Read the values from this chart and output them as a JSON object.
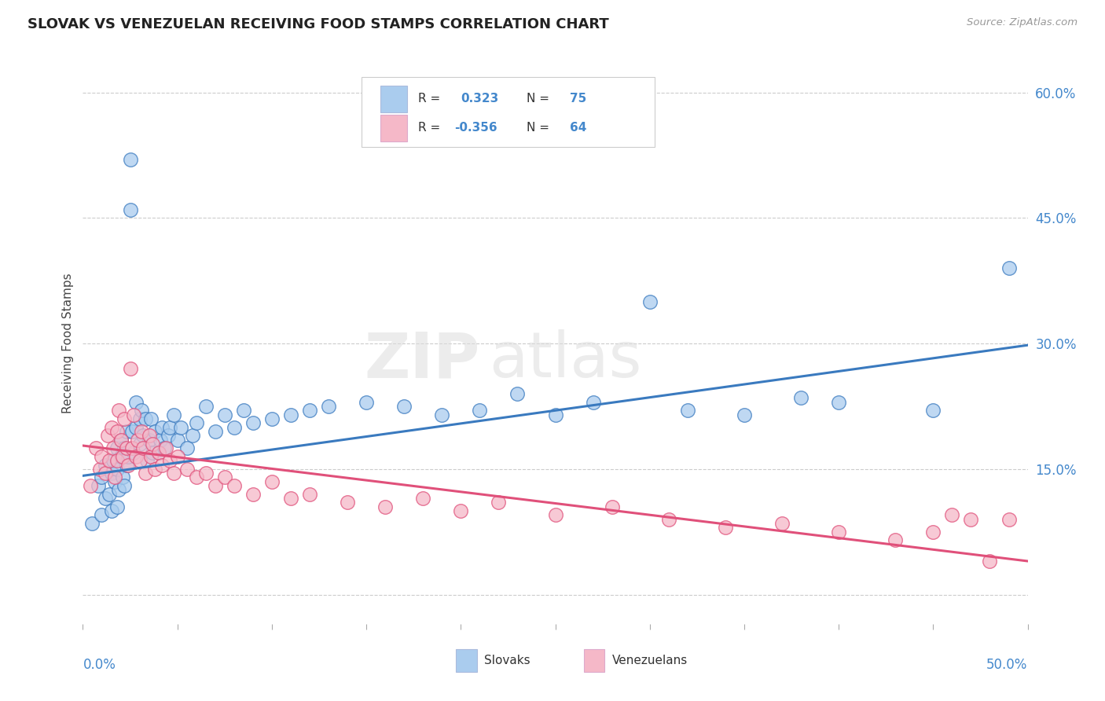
{
  "title": "SLOVAK VS VENEZUELAN RECEIVING FOOD STAMPS CORRELATION CHART",
  "source": "Source: ZipAtlas.com",
  "ylabel": "Receiving Food Stamps",
  "r_slovak": 0.323,
  "n_slovak": 75,
  "r_venezuelan": -0.356,
  "n_venezuelan": 64,
  "blue_color": "#aaccee",
  "pink_color": "#f5b8c8",
  "blue_line_color": "#3a7abf",
  "pink_line_color": "#e0507a",
  "right_yticks": [
    0.0,
    0.15,
    0.3,
    0.45,
    0.6
  ],
  "right_yticklabels": [
    "",
    "15.0%",
    "30.0%",
    "45.0%",
    "60.0%"
  ],
  "xmin": 0.0,
  "xmax": 0.5,
  "ymin": -0.035,
  "ymax": 0.635,
  "watermark_zip": "ZIP",
  "watermark_atlas": "atlas",
  "blue_scatter_x": [
    0.005,
    0.008,
    0.01,
    0.01,
    0.012,
    0.012,
    0.014,
    0.015,
    0.015,
    0.016,
    0.017,
    0.018,
    0.018,
    0.018,
    0.019,
    0.02,
    0.02,
    0.021,
    0.022,
    0.022,
    0.023,
    0.023,
    0.024,
    0.025,
    0.025,
    0.026,
    0.027,
    0.028,
    0.028,
    0.03,
    0.03,
    0.031,
    0.032,
    0.033,
    0.034,
    0.035,
    0.036,
    0.037,
    0.038,
    0.04,
    0.041,
    0.042,
    0.043,
    0.045,
    0.046,
    0.048,
    0.05,
    0.052,
    0.055,
    0.058,
    0.06,
    0.065,
    0.07,
    0.075,
    0.08,
    0.085,
    0.09,
    0.1,
    0.11,
    0.12,
    0.13,
    0.15,
    0.17,
    0.19,
    0.21,
    0.23,
    0.25,
    0.27,
    0.3,
    0.32,
    0.35,
    0.38,
    0.4,
    0.45,
    0.49
  ],
  "blue_scatter_y": [
    0.085,
    0.13,
    0.095,
    0.14,
    0.115,
    0.155,
    0.12,
    0.1,
    0.145,
    0.16,
    0.135,
    0.105,
    0.15,
    0.175,
    0.125,
    0.165,
    0.185,
    0.14,
    0.13,
    0.175,
    0.155,
    0.195,
    0.165,
    0.52,
    0.46,
    0.195,
    0.17,
    0.2,
    0.23,
    0.21,
    0.18,
    0.22,
    0.19,
    0.21,
    0.16,
    0.185,
    0.21,
    0.17,
    0.195,
    0.17,
    0.185,
    0.2,
    0.175,
    0.19,
    0.2,
    0.215,
    0.185,
    0.2,
    0.175,
    0.19,
    0.205,
    0.225,
    0.195,
    0.215,
    0.2,
    0.22,
    0.205,
    0.21,
    0.215,
    0.22,
    0.225,
    0.23,
    0.225,
    0.215,
    0.22,
    0.24,
    0.215,
    0.23,
    0.35,
    0.22,
    0.215,
    0.235,
    0.23,
    0.22,
    0.39
  ],
  "pink_scatter_x": [
    0.004,
    0.007,
    0.009,
    0.01,
    0.012,
    0.013,
    0.014,
    0.015,
    0.016,
    0.017,
    0.018,
    0.018,
    0.019,
    0.02,
    0.021,
    0.022,
    0.023,
    0.024,
    0.025,
    0.026,
    0.027,
    0.028,
    0.029,
    0.03,
    0.031,
    0.032,
    0.033,
    0.035,
    0.036,
    0.037,
    0.038,
    0.04,
    0.042,
    0.044,
    0.046,
    0.048,
    0.05,
    0.055,
    0.06,
    0.065,
    0.07,
    0.075,
    0.08,
    0.09,
    0.1,
    0.11,
    0.12,
    0.14,
    0.16,
    0.18,
    0.2,
    0.22,
    0.25,
    0.28,
    0.31,
    0.34,
    0.37,
    0.4,
    0.43,
    0.45,
    0.46,
    0.47,
    0.48,
    0.49
  ],
  "pink_scatter_y": [
    0.13,
    0.175,
    0.15,
    0.165,
    0.145,
    0.19,
    0.16,
    0.2,
    0.175,
    0.14,
    0.195,
    0.16,
    0.22,
    0.185,
    0.165,
    0.21,
    0.175,
    0.155,
    0.27,
    0.175,
    0.215,
    0.165,
    0.185,
    0.16,
    0.195,
    0.175,
    0.145,
    0.19,
    0.165,
    0.18,
    0.15,
    0.17,
    0.155,
    0.175,
    0.16,
    0.145,
    0.165,
    0.15,
    0.14,
    0.145,
    0.13,
    0.14,
    0.13,
    0.12,
    0.135,
    0.115,
    0.12,
    0.11,
    0.105,
    0.115,
    0.1,
    0.11,
    0.095,
    0.105,
    0.09,
    0.08,
    0.085,
    0.075,
    0.065,
    0.075,
    0.095,
    0.09,
    0.04,
    0.09
  ],
  "blue_trend_x": [
    0.0,
    0.5
  ],
  "blue_trend_y": [
    0.142,
    0.298
  ],
  "pink_trend_x": [
    0.0,
    0.5
  ],
  "pink_trend_y": [
    0.178,
    0.04
  ]
}
